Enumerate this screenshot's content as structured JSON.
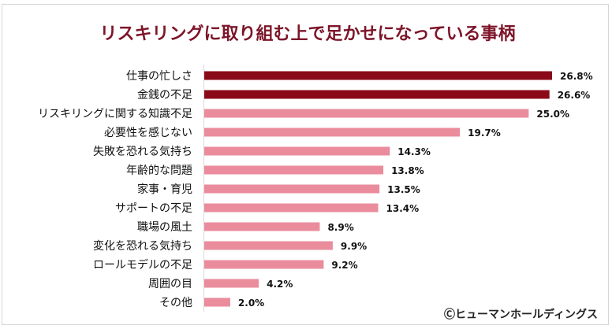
{
  "chart_data": {
    "type": "bar",
    "orientation": "horizontal",
    "title": "リスキリングに取り組む上で足かせになっている事柄",
    "categories": [
      "仕事の忙しさ",
      "金銭の不足",
      "リスキリングに関する知識不足",
      "必要性を感じない",
      "失敗を恐れる気持ち",
      "年齢的な問題",
      "家事・育児",
      "サポートの不足",
      "職場の風土",
      "変化を恐れる気持ち",
      "ロールモデルの不足",
      "周囲の目",
      "その他"
    ],
    "values": [
      26.8,
      26.6,
      25.0,
      19.7,
      14.3,
      13.8,
      13.5,
      13.4,
      8.9,
      9.9,
      9.2,
      4.2,
      2.0
    ],
    "labels": [
      "26.8%",
      "26.6%",
      "25.0%",
      "19.7%",
      "14.3%",
      "13.8%",
      "13.5%",
      "13.4%",
      "8.9%",
      "9.9%",
      "9.2%",
      "4.2%",
      "2.0%"
    ],
    "highlighted": [
      true,
      true,
      false,
      false,
      false,
      false,
      false,
      false,
      false,
      false,
      false,
      false,
      false
    ],
    "unit": "%",
    "xlim": [
      0,
      30
    ],
    "grid": false,
    "colors": {
      "highlight": "#8b0a1a",
      "default": "#ea8c9c",
      "title": "#7d1529"
    },
    "credit": "Ⓒヒューマンホールディングス"
  }
}
